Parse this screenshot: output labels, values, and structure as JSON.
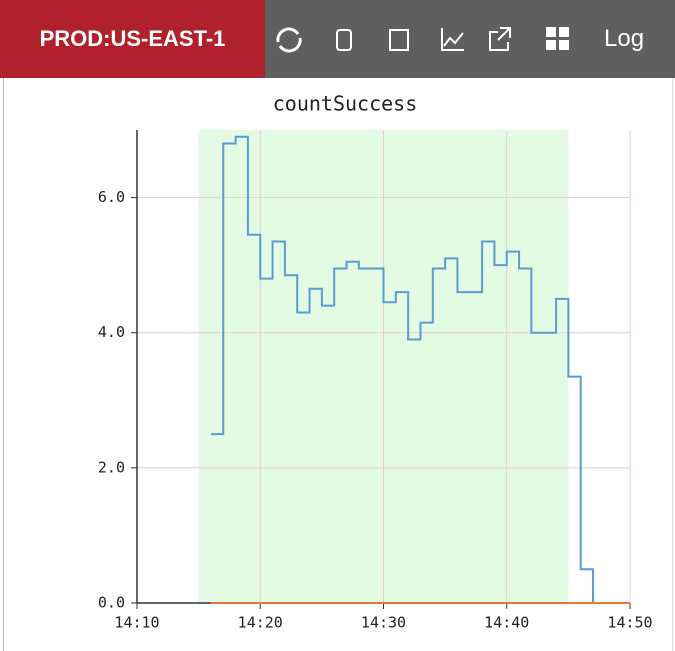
{
  "header": {
    "environment": "PROD:US-EAST-1",
    "log": "Log"
  },
  "chart_data": {
    "type": "step",
    "title": "countSuccess",
    "x": [
      16,
      17,
      18,
      19,
      20,
      21,
      22,
      23,
      24,
      25,
      26,
      27,
      28,
      29,
      30,
      31,
      32,
      33,
      34,
      35,
      36,
      37,
      38,
      39,
      40,
      41,
      42,
      43,
      44,
      45,
      46,
      47,
      48,
      49,
      50
    ],
    "series": [
      {
        "color": "#5b9bd5",
        "values": [
          2.5,
          6.8,
          6.9,
          5.45,
          4.8,
          5.35,
          4.85,
          4.3,
          4.65,
          4.4,
          4.95,
          5.05,
          4.95,
          4.95,
          4.45,
          4.6,
          3.9,
          4.15,
          4.95,
          5.1,
          4.6,
          4.6,
          5.35,
          5.0,
          5.2,
          4.95,
          4.0,
          4.0,
          4.5,
          3.35,
          0.5,
          0,
          null,
          null,
          null
        ]
      },
      {
        "color": "#e07b39",
        "values": [
          0,
          0,
          0,
          0,
          0,
          0,
          0,
          0,
          0,
          0,
          0,
          0,
          0,
          0,
          0,
          0,
          0,
          0,
          0,
          0,
          0,
          0,
          0,
          0,
          0,
          0,
          0,
          0,
          0,
          0,
          0,
          0,
          0,
          0,
          0
        ]
      }
    ],
    "shaded_range": [
      15,
      45
    ],
    "shade_color": "#e3fbe3",
    "xlim": [
      10,
      50
    ],
    "ylim": [
      0,
      7
    ],
    "xticks": [
      {
        "value": 10,
        "label": "14:10"
      },
      {
        "value": 20,
        "label": "14:20"
      },
      {
        "value": 30,
        "label": "14:30"
      },
      {
        "value": 40,
        "label": "14:40"
      },
      {
        "value": 50,
        "label": "14:50"
      }
    ],
    "yticks": [
      {
        "value": 0,
        "label": "0.0"
      },
      {
        "value": 2,
        "label": "2.0"
      },
      {
        "value": 4,
        "label": "4.0"
      },
      {
        "value": 6,
        "label": "6.0"
      }
    ],
    "grid": true
  }
}
